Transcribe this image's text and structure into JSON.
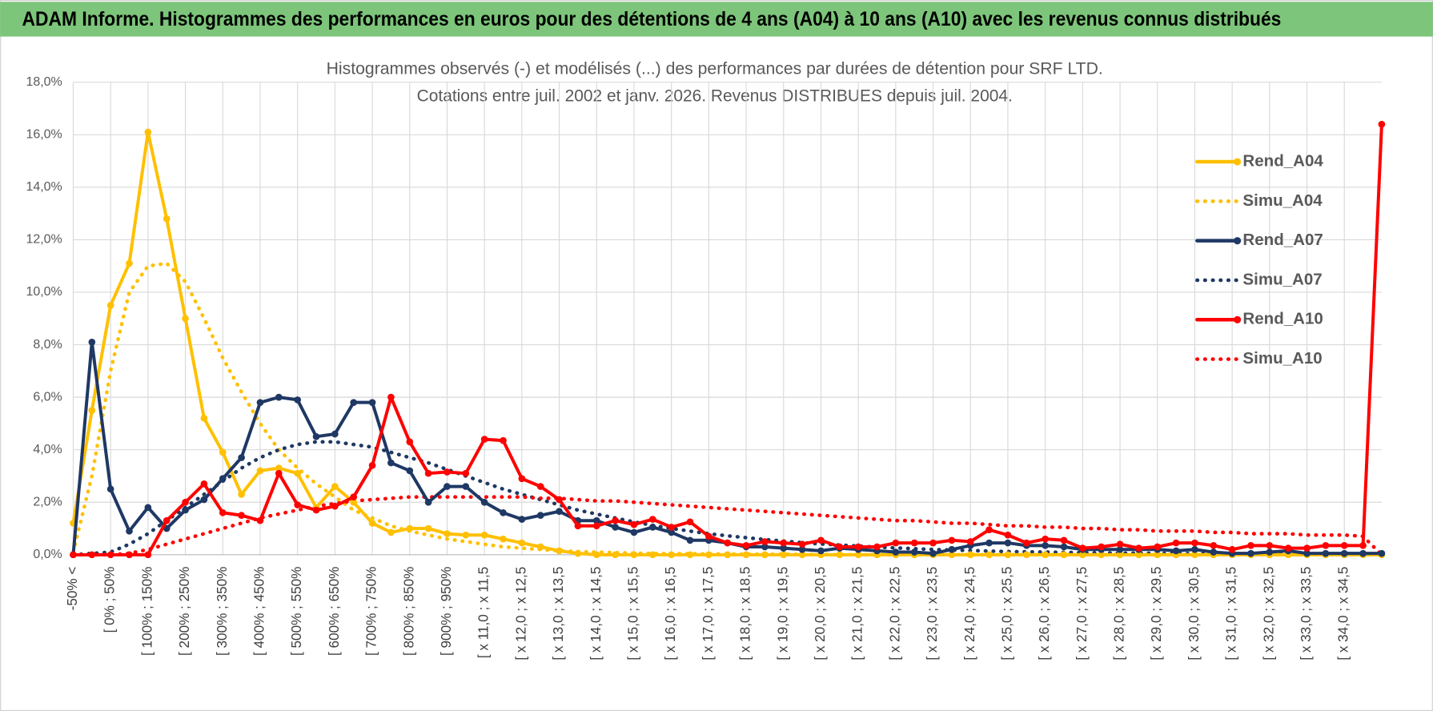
{
  "header": {
    "title": "ADAM Informe. Histogrammes des performances en euros pour des détentions de 4 ans (A04) à 10 ans (A10) avec les revenus connus distribués"
  },
  "chart_data": {
    "type": "line",
    "title": "Histogrammes observés (-) et modélisés (...) des performances par durées de détention pour SRF LTD.",
    "subtitle": "Cotations entre juil. 2002 et janv. 2026. Revenus DISTRIBUES depuis juil. 2004.",
    "categories": [
      "-50% <",
      null,
      "[ 0% ; 50%",
      null,
      "[ 100% ; 150%",
      null,
      "[ 200% ; 250%",
      null,
      "[ 300% ; 350%",
      null,
      "[ 400% ; 450%",
      null,
      "[ 500% ; 550%",
      null,
      "[ 600% ; 650%",
      null,
      "[ 700% ; 750%",
      null,
      "[ 800% ; 850%",
      null,
      "[ 900% ; 950%",
      null,
      "[ x 11,0 ; x 11,5",
      null,
      "[ x 12,0 ; x 12,5",
      null,
      "[ x 13,0 ; x 13,5",
      null,
      "[ x 14,0 ; x 14,5",
      null,
      "[ x 15,0 ; x 15,5",
      null,
      "[ x 16,0 ; x 16,5",
      null,
      "[ x 17,0 ; x 17,5",
      null,
      "[ x 18,0 ; x 18,5",
      null,
      "[ x 19,0 ; x 19,5",
      null,
      "[ x 20,0 ; x 20,5",
      null,
      "[ x 21,0 ; x 21,5",
      null,
      "[ x 22,0 ; x 22,5",
      null,
      "[ x 23,0 ; x 23,5",
      null,
      "[ x 24,0 ; x 24,5",
      null,
      "[ x 25,0 ; x 25,5",
      null,
      "[ x 26,0 ; x 26,5",
      null,
      "[ x 27,0 ; x 27,5",
      null,
      "[ x 28,0 ; x 28,5",
      null,
      "[ x 29,0 ; x 29,5",
      null,
      "[ x 30,0 ; x 30,5",
      null,
      "[ x 31,0 ; x 31,5",
      null,
      "[ x 32,0 ; x 32,5",
      null,
      "[ x 33,0 ; x 33,5",
      null,
      "[ x 34,0 ; x 34,5",
      null,
      null
    ],
    "series": [
      {
        "name": "Rend_A04",
        "color": "#FFC000",
        "style": "solid",
        "values": [
          1.2,
          5.5,
          9.5,
          11.1,
          16.1,
          12.8,
          9.0,
          5.2,
          3.9,
          2.3,
          3.2,
          3.3,
          3.1,
          1.8,
          2.6,
          2.0,
          1.2,
          0.85,
          1.0,
          1.0,
          0.8,
          0.75,
          0.75,
          0.6,
          0.45,
          0.3,
          0.15,
          0.05,
          0,
          0,
          0,
          0,
          0,
          0,
          0,
          0,
          0,
          0,
          0,
          0,
          0,
          0,
          0,
          0,
          0,
          0,
          0,
          0,
          0,
          0,
          0,
          0,
          0,
          0,
          0,
          0,
          0,
          0,
          0,
          0,
          0,
          0,
          0,
          0,
          0,
          0,
          0,
          0,
          0,
          0,
          0
        ]
      },
      {
        "name": "Simu_A04",
        "color": "#FFC000",
        "style": "dotted",
        "values": [
          0.1,
          3,
          7,
          10,
          11.0,
          11.1,
          10.4,
          9,
          7.5,
          6.2,
          5.0,
          4.0,
          3.3,
          2.7,
          2.2,
          1.7,
          1.4,
          1.1,
          0.9,
          0.75,
          0.6,
          0.5,
          0.4,
          0.3,
          0.25,
          0.2,
          0.15,
          0.12,
          0.1,
          0.08,
          0.06,
          0.05,
          0.04,
          0.04,
          0.03,
          0.03,
          0.02,
          0.02,
          0.02,
          0.01,
          0.01,
          0,
          0,
          0,
          0,
          0,
          0,
          0,
          0,
          0,
          0,
          0,
          0,
          0,
          0,
          0,
          0,
          0,
          0,
          0,
          0,
          0,
          0,
          0,
          0,
          0,
          0,
          0,
          0,
          0,
          0
        ]
      },
      {
        "name": "Rend_A07",
        "color": "#1F3864",
        "style": "solid",
        "values": [
          0,
          8.1,
          2.5,
          0.9,
          1.8,
          1.0,
          1.7,
          2.1,
          2.9,
          3.7,
          5.8,
          6.0,
          5.9,
          4.5,
          4.6,
          5.8,
          5.8,
          3.5,
          3.2,
          2.0,
          2.6,
          2.6,
          2.0,
          1.6,
          1.35,
          1.5,
          1.65,
          1.3,
          1.3,
          1.05,
          0.85,
          1.05,
          0.85,
          0.55,
          0.55,
          0.45,
          0.3,
          0.3,
          0.25,
          0.2,
          0.15,
          0.25,
          0.2,
          0.15,
          0.1,
          0.1,
          0.05,
          0.2,
          0.35,
          0.45,
          0.45,
          0.35,
          0.35,
          0.3,
          0.2,
          0.2,
          0.2,
          0.2,
          0.2,
          0.15,
          0.2,
          0.1,
          0.05,
          0.05,
          0.1,
          0.15,
          0.05,
          0.05,
          0.05,
          0.05,
          0.05
        ]
      },
      {
        "name": "Simu_A07",
        "color": "#1F3864",
        "style": "dotted",
        "values": [
          0,
          0.05,
          0.1,
          0.4,
          0.8,
          1.3,
          1.8,
          2.3,
          2.8,
          3.3,
          3.7,
          4.0,
          4.2,
          4.3,
          4.3,
          4.2,
          4.1,
          3.9,
          3.7,
          3.5,
          3.25,
          3.0,
          2.75,
          2.5,
          2.3,
          2.1,
          1.9,
          1.7,
          1.55,
          1.4,
          1.25,
          1.12,
          1.0,
          0.9,
          0.8,
          0.72,
          0.65,
          0.58,
          0.52,
          0.46,
          0.41,
          0.37,
          0.33,
          0.29,
          0.26,
          0.23,
          0.2,
          0.18,
          0.16,
          0.14,
          0.12,
          0.11,
          0.1,
          0.09,
          0.08,
          0.07,
          0.06,
          0.06,
          0.05,
          0.05,
          0.04,
          0.04,
          0.03,
          0.03,
          0.03,
          0.02,
          0.02,
          0.02,
          0.02,
          0.01,
          0.01
        ]
      },
      {
        "name": "Rend_A10",
        "color": "#FF0000",
        "style": "solid",
        "values": [
          0,
          0,
          0,
          0,
          0,
          1.3,
          2.0,
          2.7,
          1.6,
          1.5,
          1.3,
          3.1,
          1.9,
          1.7,
          1.85,
          2.2,
          3.4,
          6.0,
          4.3,
          3.1,
          3.15,
          3.1,
          4.4,
          4.35,
          2.9,
          2.6,
          2.1,
          1.1,
          1.1,
          1.3,
          1.15,
          1.35,
          1.05,
          1.25,
          0.7,
          0.45,
          0.35,
          0.5,
          0.45,
          0.4,
          0.55,
          0.3,
          0.3,
          0.3,
          0.45,
          0.45,
          0.45,
          0.55,
          0.5,
          0.95,
          0.75,
          0.45,
          0.6,
          0.55,
          0.25,
          0.3,
          0.4,
          0.25,
          0.3,
          0.45,
          0.45,
          0.35,
          0.2,
          0.35,
          0.35,
          0.25,
          0.25,
          0.35,
          0.35,
          0.35,
          16.4
        ]
      },
      {
        "name": "Simu_A10",
        "color": "#FF0000",
        "style": "dotted",
        "values": [
          0,
          0,
          0,
          0.05,
          0.2,
          0.4,
          0.6,
          0.8,
          1.0,
          1.2,
          1.4,
          1.55,
          1.7,
          1.85,
          1.95,
          2.05,
          2.1,
          2.15,
          2.2,
          2.2,
          2.2,
          2.2,
          2.2,
          2.2,
          2.2,
          2.15,
          2.15,
          2.1,
          2.05,
          2.05,
          2.0,
          1.95,
          1.9,
          1.85,
          1.8,
          1.75,
          1.7,
          1.65,
          1.6,
          1.55,
          1.5,
          1.45,
          1.4,
          1.35,
          1.3,
          1.3,
          1.25,
          1.2,
          1.2,
          1.15,
          1.1,
          1.1,
          1.05,
          1.05,
          1.0,
          1.0,
          0.95,
          0.95,
          0.9,
          0.9,
          0.9,
          0.85,
          0.85,
          0.8,
          0.8,
          0.8,
          0.75,
          0.75,
          0.75,
          0.7,
          0
        ]
      }
    ],
    "ylim": [
      0,
      18
    ],
    "yticks": [
      {
        "value": 0,
        "label": "0,0%"
      },
      {
        "value": 2,
        "label": "2,0%"
      },
      {
        "value": 4,
        "label": "4,0%"
      },
      {
        "value": 6,
        "label": "6,0%"
      },
      {
        "value": 8,
        "label": "8,0%"
      },
      {
        "value": 10,
        "label": "10,0%"
      },
      {
        "value": 12,
        "label": "12,0%"
      },
      {
        "value": 14,
        "label": "14,0%"
      },
      {
        "value": 16,
        "label": "16,0%"
      },
      {
        "value": 18,
        "label": "18,0%"
      }
    ],
    "grid": true,
    "legend": "upper right"
  }
}
